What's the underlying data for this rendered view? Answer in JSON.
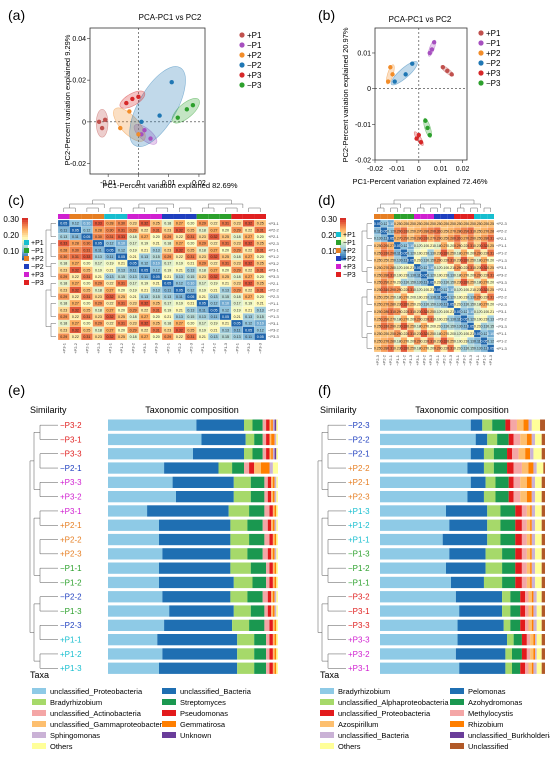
{
  "colors": {
    "P1p": "#c0504d",
    "P1m": "#a64fbf",
    "P2p": "#f28c28",
    "P2m": "#1f77b4",
    "P3p": "#d62728",
    "P3m": "#2ca02c",
    "g_P1p": "#17becf",
    "g_P1m": "#2ca02c",
    "g_P2p": "#e67e22",
    "g_P2m": "#1f3fbf",
    "g_P3p": "#d020d0",
    "g_P3m": "#e02020"
  },
  "panels": {
    "a": {
      "letter": "(a)",
      "title": "PCA-PC1 vs PC2",
      "xlabel": "PC1-Percent variation explained 82.69%",
      "ylabel": "PC2-Percent variation explained 9.29%",
      "xticks": [
        "-0.01",
        "0",
        "0.01",
        "0.02"
      ],
      "yticks": [
        "-0.02",
        "0",
        "0.02",
        "0.04"
      ]
    },
    "b": {
      "letter": "(b)",
      "title": "PCA-PC1 vs PC2",
      "xlabel": "PC1-Percent variation explained 72.46%",
      "ylabel": "PC2-Percent variation explained 20.97%",
      "xticks": [
        "-0.02",
        "-0.01",
        "0",
        "0.01",
        "0.02"
      ],
      "yticks": [
        "-0.02",
        "-0.01",
        "0",
        "0.01"
      ]
    },
    "c": {
      "letter": "(c)",
      "scale": [
        "0.30",
        "0.20",
        "0.10"
      ]
    },
    "d": {
      "letter": "(d)",
      "scale": [
        "0.30",
        "0.20",
        "0.10"
      ]
    },
    "e": {
      "letter": "(e)",
      "similarity": "Similarity",
      "comp": "Taxonomic composition",
      "taxa": "Taxa"
    },
    "f": {
      "letter": "(f)",
      "similarity": "Similarity",
      "comp": "Taxonomic composition",
      "taxa": "Taxa"
    }
  },
  "legend_groups": [
    "+P1",
    "−P1",
    "+P2",
    "−P2",
    "+P3",
    "−P3"
  ],
  "chart_data": [
    {
      "type": "scatter",
      "panel": "a",
      "series": [
        {
          "name": "+P1",
          "points": [
            [
              -0.013,
              0.0
            ],
            [
              -0.012,
              -0.003
            ],
            [
              -0.011,
              0.001
            ]
          ]
        },
        {
          "name": "−P1",
          "points": [
            [
              0.001,
              -0.006
            ],
            [
              0.004,
              -0.008
            ],
            [
              0.002,
              -0.004
            ]
          ]
        },
        {
          "name": "+P2",
          "points": [
            [
              -0.006,
              -0.003
            ],
            [
              -0.003,
              0.005
            ],
            [
              0.0,
              -0.006
            ]
          ]
        },
        {
          "name": "−P2",
          "points": [
            [
              0.001,
              0.0
            ],
            [
              0.007,
              0.003
            ],
            [
              0.011,
              0.019
            ]
          ]
        },
        {
          "name": "+P3",
          "points": [
            [
              -0.004,
              0.009
            ],
            [
              -0.002,
              0.011
            ],
            [
              0.0,
              0.012
            ]
          ]
        },
        {
          "name": "−P3",
          "points": [
            [
              0.013,
              0.002
            ],
            [
              0.016,
              0.006
            ],
            [
              0.018,
              0.008
            ]
          ]
        }
      ],
      "xlim": [
        -0.016,
        0.022
      ],
      "ylim": [
        -0.025,
        0.045
      ]
    },
    {
      "type": "scatter",
      "panel": "b",
      "series": [
        {
          "name": "+P1",
          "points": [
            [
              0.011,
              0.006
            ],
            [
              0.013,
              0.005
            ],
            [
              0.015,
              0.004
            ]
          ]
        },
        {
          "name": "−P1",
          "points": [
            [
              0.006,
              0.011
            ],
            [
              0.007,
              0.013
            ],
            [
              0.005,
              0.01
            ]
          ]
        },
        {
          "name": "+P2",
          "points": [
            [
              -0.014,
              0.002
            ],
            [
              -0.013,
              0.006
            ],
            [
              -0.012,
              0.004
            ]
          ]
        },
        {
          "name": "−P2",
          "points": [
            [
              -0.011,
              0.002
            ],
            [
              -0.006,
              0.004
            ],
            [
              -0.003,
              0.007
            ]
          ]
        },
        {
          "name": "+P3",
          "points": [
            [
              -0.001,
              -0.014
            ],
            [
              0.0,
              -0.013
            ],
            [
              0.001,
              -0.015
            ]
          ]
        },
        {
          "name": "−P3",
          "points": [
            [
              0.003,
              -0.009
            ],
            [
              0.004,
              -0.011
            ],
            [
              0.005,
              -0.013
            ]
          ]
        }
      ],
      "xlim": [
        -0.02,
        0.022
      ],
      "ylim": [
        -0.02,
        0.017
      ]
    },
    {
      "type": "heatmap",
      "panel": "c",
      "rows": [
        "+P3-1",
        "+P2-2",
        "+P2-1",
        "+P2-3",
        "+P1-1",
        "+P1-2",
        "+P3-2",
        "+P3-1",
        "+P3-3",
        "−P2-1",
        "−P2-2",
        "−P2-3",
        "−P1-1",
        "−P1-2",
        "−P1-3",
        "−P3-1",
        "−P3-2",
        "−P3-3"
      ],
      "cols": [
        "+P3-1",
        "+P2-2",
        "+P2-1",
        "+P2-3",
        "+P1-1",
        "+P1-2",
        "+P3-2",
        "+P3-1",
        "+P3-3",
        "−P2-1",
        "−P2-2",
        "−P2-3",
        "−P1-1",
        "−P1-2",
        "−P1-3",
        "−P3-1",
        "−P3-2",
        "−P3-3"
      ],
      "range": [
        0.05,
        0.35
      ]
    },
    {
      "type": "heatmap",
      "panel": "d",
      "rows": [
        "+P2-3",
        "+P2-2",
        "+P2-1",
        "−P1-1",
        "−P1-2",
        "−P1-3",
        "+P3-1",
        "+P3-2",
        "+P3-3",
        "−P2-1",
        "−P2-2",
        "−P2-3",
        "−P3-1",
        "−P3-2",
        "−P3-3",
        "+P1-1",
        "+P1-2",
        "+P1-3"
      ],
      "cols": [
        "+P2-3",
        "+P2-2",
        "+P2-1",
        "−P1-1",
        "−P1-2",
        "−P1-3",
        "+P3-1",
        "+P3-2",
        "+P3-3",
        "−P2-1",
        "−P2-2",
        "−P2-3",
        "−P3-1",
        "−P3-2",
        "−P3-3",
        "+P1-1",
        "+P1-2",
        "+P1-3"
      ],
      "range": [
        0.05,
        0.35
      ]
    },
    {
      "type": "bar",
      "panel": "e",
      "stacked": true,
      "categories": [
        "P3-2",
        "P3-1",
        "P3-3",
        "P2-1",
        "P3-3",
        "P3-2",
        "P3-1",
        "P2-1",
        "P2-2",
        "P2-3",
        "P1-1",
        "P1-2",
        "P2-2",
        "P1-3",
        "P2-3",
        "P1-1",
        "P1-2",
        "P1-3"
      ],
      "signs": [
        "−",
        "−",
        "−",
        "−",
        "+",
        "+",
        "+",
        "+",
        "+",
        "+",
        "−",
        "−",
        "−",
        "−",
        "−",
        "+",
        "+",
        "+"
      ],
      "groupColor": [
        "g_P3m",
        "g_P3m",
        "g_P3m",
        "g_P2m",
        "g_P3p",
        "g_P3p",
        "g_P3p",
        "g_P2p",
        "g_P2p",
        "g_P2p",
        "g_P1m",
        "g_P1m",
        "g_P2m",
        "g_P1m",
        "g_P2m",
        "g_P1p",
        "g_P1p",
        "g_P1p"
      ],
      "taxa": [
        {
          "name": "unclassified_Proteobacteria",
          "color": "#8ecae6"
        },
        {
          "name": "unclassified_Bacteria",
          "color": "#1f6fb2"
        },
        {
          "name": "Bradyrhizobium",
          "color": "#a6d96a"
        },
        {
          "name": "Streptomyces",
          "color": "#1a9850"
        },
        {
          "name": "unclassified_Actinobacteria",
          "color": "#f4a6a6"
        },
        {
          "name": "Pseudomonas",
          "color": "#e31a1c"
        },
        {
          "name": "unclassified_Gammaproteobacteria",
          "color": "#fdbf6f"
        },
        {
          "name": "Gemmatirosa",
          "color": "#ff7f00"
        },
        {
          "name": "Sphingomonas",
          "color": "#cab2d6"
        },
        {
          "name": "Unknown",
          "color": "#6a3d9a"
        },
        {
          "name": "Others",
          "color": "#ffff99"
        }
      ],
      "values": [
        [
          0.52,
          0.28,
          0.05,
          0.06,
          0.02,
          0.02,
          0.01,
          0.01,
          0.01,
          0.01,
          0.01
        ],
        [
          0.55,
          0.26,
          0.05,
          0.05,
          0.02,
          0.02,
          0.01,
          0.02,
          0.01,
          0.0,
          0.01
        ],
        [
          0.5,
          0.3,
          0.05,
          0.06,
          0.02,
          0.02,
          0.01,
          0.01,
          0.01,
          0.01,
          0.01
        ],
        [
          0.33,
          0.32,
          0.08,
          0.07,
          0.03,
          0.03,
          0.04,
          0.05,
          0.02,
          0.0,
          0.03
        ],
        [
          0.38,
          0.36,
          0.1,
          0.08,
          0.02,
          0.02,
          0.01,
          0.01,
          0.01,
          0.0,
          0.01
        ],
        [
          0.4,
          0.34,
          0.1,
          0.08,
          0.02,
          0.02,
          0.01,
          0.01,
          0.01,
          0.0,
          0.01
        ],
        [
          0.23,
          0.48,
          0.12,
          0.09,
          0.03,
          0.02,
          0.01,
          0.01,
          0.0,
          0.0,
          0.01
        ],
        [
          0.3,
          0.42,
          0.1,
          0.09,
          0.03,
          0.02,
          0.01,
          0.01,
          0.01,
          0.0,
          0.01
        ],
        [
          0.3,
          0.42,
          0.11,
          0.09,
          0.03,
          0.02,
          0.01,
          0.01,
          0.0,
          0.0,
          0.01
        ],
        [
          0.32,
          0.4,
          0.1,
          0.09,
          0.03,
          0.02,
          0.01,
          0.01,
          0.01,
          0.0,
          0.01
        ],
        [
          0.3,
          0.42,
          0.12,
          0.09,
          0.02,
          0.02,
          0.01,
          0.01,
          0.0,
          0.0,
          0.01
        ],
        [
          0.3,
          0.44,
          0.11,
          0.08,
          0.02,
          0.02,
          0.01,
          0.01,
          0.0,
          0.0,
          0.01
        ],
        [
          0.32,
          0.4,
          0.1,
          0.09,
          0.03,
          0.02,
          0.01,
          0.01,
          0.01,
          0.0,
          0.01
        ],
        [
          0.36,
          0.38,
          0.1,
          0.08,
          0.02,
          0.02,
          0.01,
          0.01,
          0.01,
          0.0,
          0.01
        ],
        [
          0.33,
          0.4,
          0.1,
          0.09,
          0.03,
          0.02,
          0.01,
          0.01,
          0.0,
          0.0,
          0.01
        ],
        [
          0.29,
          0.47,
          0.1,
          0.07,
          0.02,
          0.02,
          0.01,
          0.01,
          0.0,
          0.0,
          0.01
        ],
        [
          0.32,
          0.44,
          0.1,
          0.07,
          0.02,
          0.02,
          0.01,
          0.01,
          0.0,
          0.0,
          0.01
        ],
        [
          0.3,
          0.46,
          0.1,
          0.07,
          0.02,
          0.02,
          0.01,
          0.01,
          0.0,
          0.0,
          0.01
        ]
      ]
    },
    {
      "type": "bar",
      "panel": "f",
      "stacked": true,
      "categories": [
        "P2-3",
        "P2-2",
        "P2-1",
        "P2-2",
        "P2-1",
        "P2-3",
        "P1-3",
        "P1-2",
        "P1-1",
        "P1-3",
        "P1-2",
        "P1-1",
        "P3-2",
        "P3-1",
        "P3-3",
        "P3-3",
        "P3-2",
        "P3-1"
      ],
      "signs": [
        "−",
        "−",
        "−",
        "+",
        "+",
        "+",
        "+",
        "+",
        "+",
        "−",
        "−",
        "−",
        "−",
        "−",
        "−",
        "+",
        "+",
        "+"
      ],
      "groupColor": [
        "g_P2m",
        "g_P2m",
        "g_P2m",
        "g_P2p",
        "g_P2p",
        "g_P2p",
        "g_P1p",
        "g_P1p",
        "g_P1p",
        "g_P1m",
        "g_P1m",
        "g_P1m",
        "g_P3m",
        "g_P3m",
        "g_P3m",
        "g_P3p",
        "g_P3p",
        "g_P3p"
      ],
      "taxa": [
        {
          "name": "Bradyrhizobium",
          "color": "#8ecae6"
        },
        {
          "name": "Pelomonas",
          "color": "#1f6fb2"
        },
        {
          "name": "unclassified_Alphaproteobacteria",
          "color": "#a6d96a"
        },
        {
          "name": "Azohydromonas",
          "color": "#1a9850"
        },
        {
          "name": "unclassified_Proteobacteria",
          "color": "#e31a1c"
        },
        {
          "name": "Methylocystis",
          "color": "#f4a6a6"
        },
        {
          "name": "Azospirillum",
          "color": "#fdbf6f"
        },
        {
          "name": "Rhizobium",
          "color": "#ff7f00"
        },
        {
          "name": "unclassified_Bacteria",
          "color": "#cab2d6"
        },
        {
          "name": "unclassified_Burkholderiales",
          "color": "#6a3d9a"
        },
        {
          "name": "Others",
          "color": "#ffff99"
        },
        {
          "name": "Unclassified",
          "color": "#b15928"
        }
      ],
      "values": [
        [
          0.55,
          0.07,
          0.06,
          0.08,
          0.03,
          0.04,
          0.04,
          0.03,
          0.02,
          0.0,
          0.05,
          0.03
        ],
        [
          0.58,
          0.07,
          0.06,
          0.07,
          0.03,
          0.04,
          0.04,
          0.03,
          0.02,
          0.0,
          0.04,
          0.02
        ],
        [
          0.55,
          0.08,
          0.06,
          0.08,
          0.03,
          0.04,
          0.04,
          0.03,
          0.02,
          0.0,
          0.05,
          0.02
        ],
        [
          0.53,
          0.1,
          0.06,
          0.08,
          0.04,
          0.05,
          0.04,
          0.03,
          0.02,
          0.0,
          0.04,
          0.01
        ],
        [
          0.55,
          0.09,
          0.06,
          0.08,
          0.03,
          0.04,
          0.04,
          0.03,
          0.02,
          0.0,
          0.04,
          0.02
        ],
        [
          0.53,
          0.1,
          0.07,
          0.08,
          0.03,
          0.04,
          0.04,
          0.03,
          0.02,
          0.0,
          0.04,
          0.02
        ],
        [
          0.4,
          0.25,
          0.08,
          0.09,
          0.04,
          0.03,
          0.02,
          0.01,
          0.02,
          0.0,
          0.04,
          0.02
        ],
        [
          0.42,
          0.23,
          0.08,
          0.09,
          0.04,
          0.03,
          0.02,
          0.01,
          0.02,
          0.0,
          0.04,
          0.02
        ],
        [
          0.38,
          0.27,
          0.08,
          0.09,
          0.04,
          0.03,
          0.02,
          0.01,
          0.02,
          0.0,
          0.04,
          0.02
        ],
        [
          0.42,
          0.22,
          0.1,
          0.08,
          0.04,
          0.03,
          0.02,
          0.01,
          0.02,
          0.0,
          0.04,
          0.02
        ],
        [
          0.4,
          0.24,
          0.1,
          0.08,
          0.04,
          0.03,
          0.02,
          0.01,
          0.02,
          0.0,
          0.04,
          0.02
        ],
        [
          0.43,
          0.2,
          0.11,
          0.08,
          0.04,
          0.03,
          0.02,
          0.01,
          0.02,
          0.0,
          0.04,
          0.02
        ],
        [
          0.46,
          0.28,
          0.05,
          0.06,
          0.03,
          0.02,
          0.02,
          0.01,
          0.02,
          0.0,
          0.03,
          0.02
        ],
        [
          0.48,
          0.26,
          0.05,
          0.06,
          0.03,
          0.02,
          0.02,
          0.01,
          0.02,
          0.0,
          0.03,
          0.02
        ],
        [
          0.47,
          0.28,
          0.04,
          0.06,
          0.03,
          0.02,
          0.02,
          0.01,
          0.02,
          0.0,
          0.03,
          0.02
        ],
        [
          0.47,
          0.3,
          0.04,
          0.05,
          0.03,
          0.02,
          0.02,
          0.01,
          0.01,
          0.0,
          0.03,
          0.02
        ],
        [
          0.46,
          0.3,
          0.04,
          0.06,
          0.03,
          0.02,
          0.02,
          0.01,
          0.01,
          0.0,
          0.03,
          0.02
        ],
        [
          0.48,
          0.28,
          0.04,
          0.05,
          0.03,
          0.02,
          0.02,
          0.01,
          0.02,
          0.0,
          0.03,
          0.02
        ]
      ]
    }
  ]
}
